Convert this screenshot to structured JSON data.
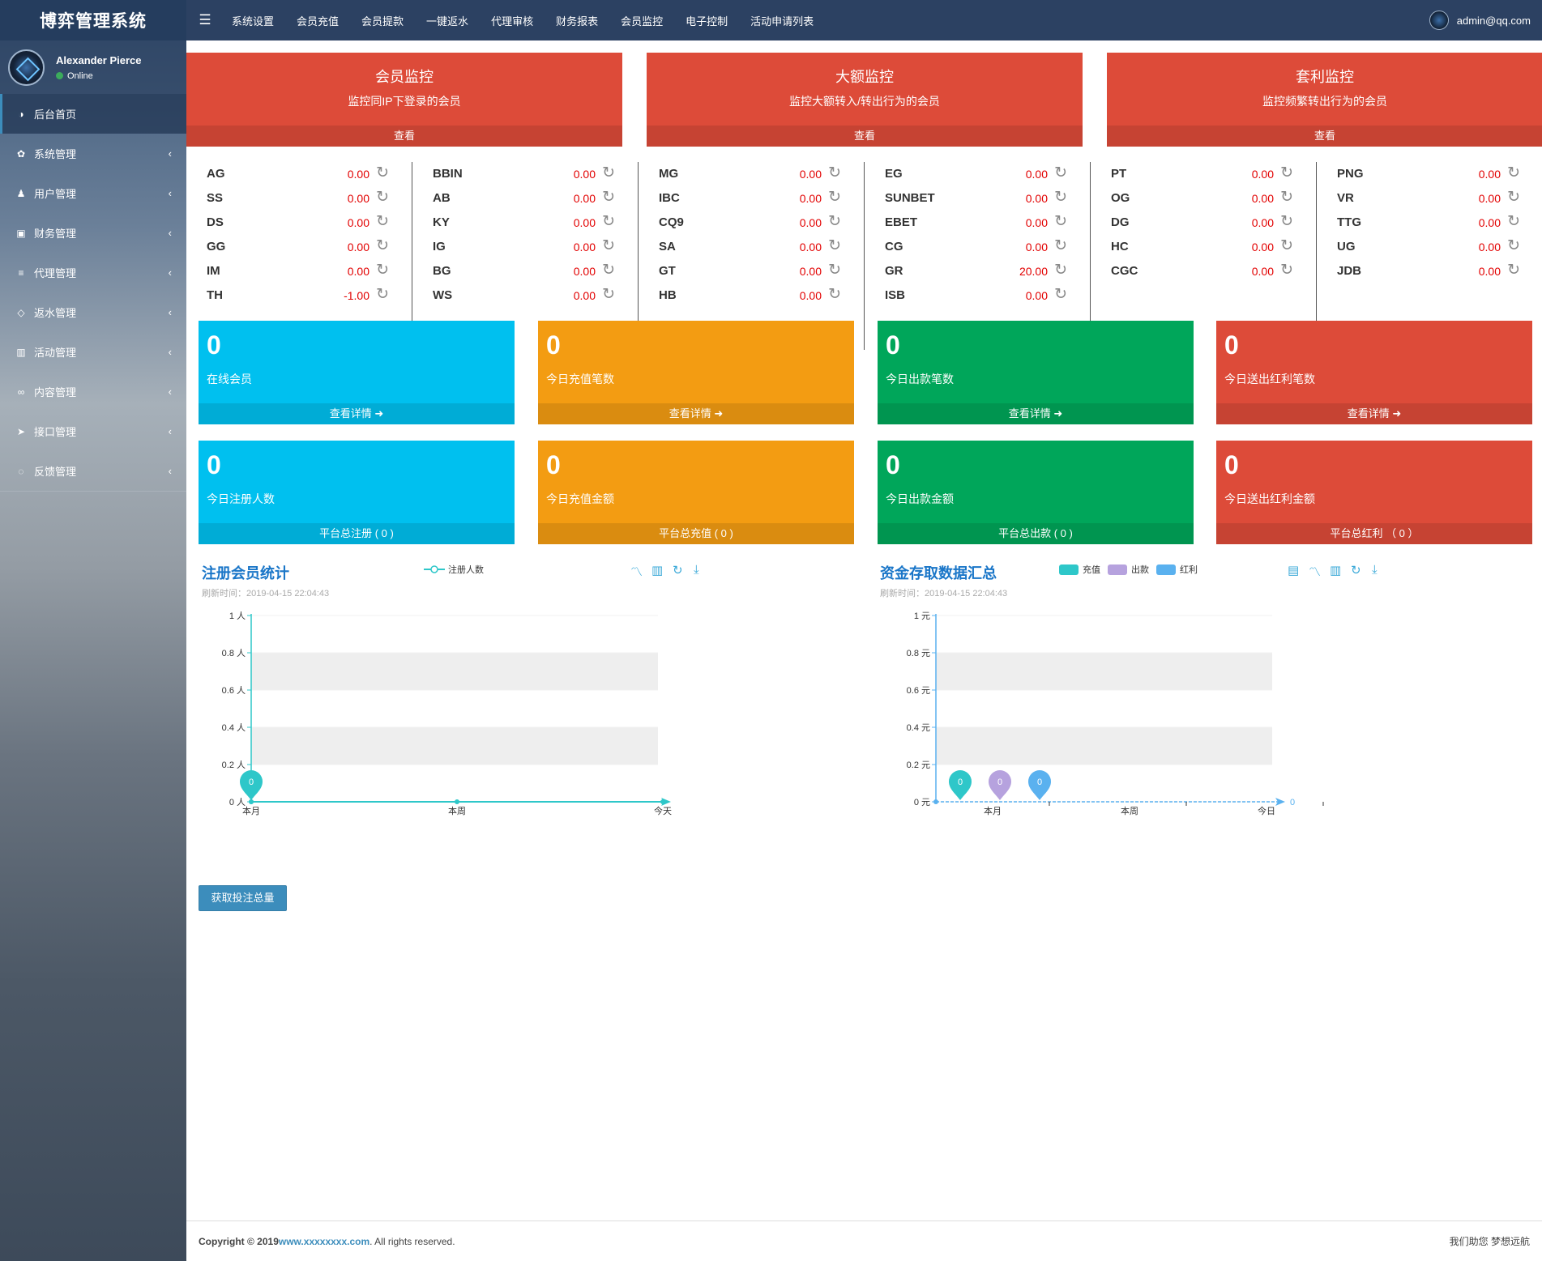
{
  "brand": "博弈管理系统",
  "user": {
    "name": "Alexander Pierce",
    "status": "Online"
  },
  "menu": [
    {
      "label": "后台首页",
      "icon": "dashboard-icon",
      "glyph": "◑",
      "active": true
    },
    {
      "label": "系统管理",
      "icon": "gear-icon",
      "glyph": "✿"
    },
    {
      "label": "用户管理",
      "icon": "users-icon",
      "glyph": "♟"
    },
    {
      "label": "财务管理",
      "icon": "money-icon",
      "glyph": "▣"
    },
    {
      "label": "代理管理",
      "icon": "list-icon",
      "glyph": "≡"
    },
    {
      "label": "返水管理",
      "icon": "code-icon",
      "glyph": "◇"
    },
    {
      "label": "活动管理",
      "icon": "map-icon",
      "glyph": "▥"
    },
    {
      "label": "内容管理",
      "icon": "link-icon",
      "glyph": "∞"
    },
    {
      "label": "接口管理",
      "icon": "send-icon",
      "glyph": "➤"
    },
    {
      "label": "反馈管理",
      "icon": "comment-icon",
      "glyph": "◌"
    }
  ],
  "nav": {
    "links": [
      "系统设置",
      "会员充值",
      "会员提款",
      "一键返水",
      "代理审核",
      "财务报表",
      "会员监控",
      "电子控制",
      "活动申请列表"
    ],
    "user_email": "admin@qq.com"
  },
  "monitors": [
    {
      "title": "会员监控",
      "sub": "监控同IP下登录的会员",
      "btn": "查看"
    },
    {
      "title": "大额监控",
      "sub": "监控大额转入/转出行为的会员",
      "btn": "查看"
    },
    {
      "title": "套利监控",
      "sub": "监控频繁转出行为的会员",
      "btn": "查看"
    }
  ],
  "games": [
    [
      {
        "n": "AG",
        "v": "0.00"
      },
      {
        "n": "SS",
        "v": "0.00"
      },
      {
        "n": "DS",
        "v": "0.00"
      },
      {
        "n": "GG",
        "v": "0.00"
      },
      {
        "n": "IM",
        "v": "0.00"
      },
      {
        "n": "TH",
        "v": "-1.00"
      }
    ],
    [
      {
        "n": "BBIN",
        "v": "0.00"
      },
      {
        "n": "AB",
        "v": "0.00"
      },
      {
        "n": "KY",
        "v": "0.00"
      },
      {
        "n": "IG",
        "v": "0.00"
      },
      {
        "n": "BG",
        "v": "0.00"
      },
      {
        "n": "WS",
        "v": "0.00"
      }
    ],
    [
      {
        "n": "MG",
        "v": "0.00"
      },
      {
        "n": "IBC",
        "v": "0.00"
      },
      {
        "n": "CQ9",
        "v": "0.00"
      },
      {
        "n": "SA",
        "v": "0.00"
      },
      {
        "n": "GT",
        "v": "0.00"
      },
      {
        "n": "HB",
        "v": "0.00"
      }
    ],
    [
      {
        "n": "EG",
        "v": "0.00"
      },
      {
        "n": "SUNBET",
        "v": "0.00"
      },
      {
        "n": "EBET",
        "v": "0.00"
      },
      {
        "n": "CG",
        "v": "0.00"
      },
      {
        "n": "GR",
        "v": "20.00"
      },
      {
        "n": "ISB",
        "v": "0.00"
      }
    ],
    [
      {
        "n": "PT",
        "v": "0.00"
      },
      {
        "n": "OG",
        "v": "0.00"
      },
      {
        "n": "DG",
        "v": "0.00"
      },
      {
        "n": "HC",
        "v": "0.00"
      },
      {
        "n": "CGC",
        "v": "0.00"
      }
    ],
    [
      {
        "n": "PNG",
        "v": "0.00"
      },
      {
        "n": "VR",
        "v": "0.00"
      },
      {
        "n": "TTG",
        "v": "0.00"
      },
      {
        "n": "UG",
        "v": "0.00"
      },
      {
        "n": "JDB",
        "v": "0.00"
      }
    ]
  ],
  "stats_row1": [
    {
      "num": "0",
      "label": "在线会员",
      "foot": "查看详情 ➜",
      "color": "aqua"
    },
    {
      "num": "0",
      "label": "今日充值笔数",
      "foot": "查看详情 ➜",
      "color": "yellow"
    },
    {
      "num": "0",
      "label": "今日出款笔数",
      "foot": "查看详情 ➜",
      "color": "green"
    },
    {
      "num": "0",
      "label": "今日送出红利笔数",
      "foot": "查看详情 ➜",
      "color": "red"
    }
  ],
  "stats_row2": [
    {
      "num": "0",
      "label": "今日注册人数",
      "foot": "平台总注册 ( 0 )",
      "color": "aqua"
    },
    {
      "num": "0",
      "label": "今日充值金额",
      "foot": "平台总充值 ( 0 )",
      "color": "yellow"
    },
    {
      "num": "0",
      "label": "今日出款金额",
      "foot": "平台总出款 ( 0 )",
      "color": "green"
    },
    {
      "num": "0",
      "label": "今日送出红利金额",
      "foot": "平台总红利 （ 0 ）",
      "color": "red"
    }
  ],
  "charts": {
    "reg": {
      "title": "注册会员统计",
      "refresh": "刷新时间：2019-04-15 22:04:43"
    },
    "fund": {
      "title": "资金存取数据汇总",
      "refresh": "刷新时间：2019-04-15 22:04:43"
    }
  },
  "chart_data": [
    {
      "type": "line",
      "title": "注册会员统计",
      "categories": [
        "本月",
        "本周",
        "今天"
      ],
      "series": [
        {
          "name": "注册人数",
          "values": [
            0,
            0,
            0
          ],
          "color": "#2ec7c9"
        }
      ],
      "ylim": [
        0,
        1
      ],
      "y_ticks": [
        "0 人",
        "0.2 人",
        "0.4 人",
        "0.6 人",
        "0.8 人",
        "1 人"
      ],
      "markpoint_label": "0",
      "end_label": "0",
      "legend": "top-center"
    },
    {
      "type": "bar",
      "title": "资金存取数据汇总",
      "categories": [
        "本月",
        "本周",
        "今日"
      ],
      "series": [
        {
          "name": "充值",
          "values": [
            0,
            0,
            0
          ],
          "color": "#2ec7c9"
        },
        {
          "name": "出款",
          "values": [
            0,
            0,
            0
          ],
          "color": "#b6a2de"
        },
        {
          "name": "红利",
          "values": [
            0,
            0,
            0
          ],
          "color": "#5ab1ef"
        }
      ],
      "ylim": [
        0,
        1
      ],
      "y_ticks": [
        "0 元",
        "0.2 元",
        "0.4 元",
        "0.6 元",
        "0.8 元",
        "1 元"
      ],
      "markpoint_label": "0",
      "end_label": "0",
      "legend": "top-center"
    }
  ],
  "button_bet": "获取投注总量",
  "footer": {
    "copyright": "Copyright © 2019 ",
    "link": "www.xxxxxxxx.com",
    "rest": ". All rights reserved.",
    "right": "我们助您 梦想远航"
  },
  "colors": {
    "aqua": "#00c0ef",
    "yellow": "#f39c12",
    "green": "#00a65a",
    "red": "#dd4b39",
    "navbar": "#2c4162",
    "accent": "#3c8dbc"
  }
}
